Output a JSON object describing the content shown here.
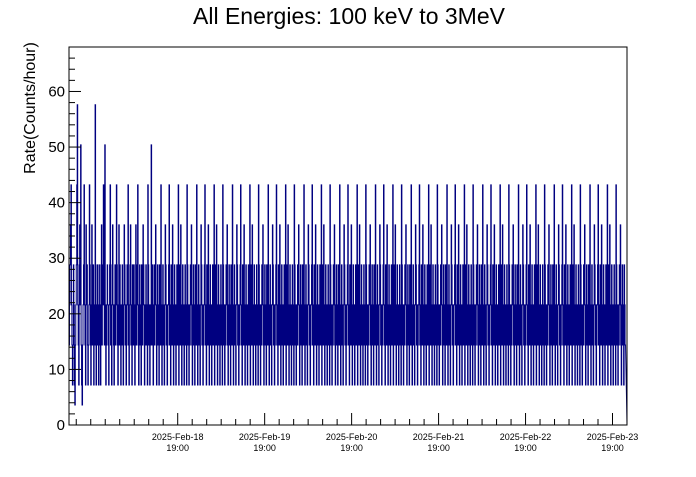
{
  "chart_data": {
    "type": "line",
    "title": "All Energies:  100 keV to 3MeV",
    "xlabel": "",
    "ylabel": "Rate(Counts/hour)",
    "x_range": [
      "2025-02-17 13:00",
      "2025-02-23 23:00"
    ],
    "ylim": [
      0,
      68
    ],
    "y_ticks": [
      0,
      10,
      20,
      30,
      40,
      50,
      60
    ],
    "x_ticks": [
      {
        "date": "2025-Feb-18",
        "time": "19:00"
      },
      {
        "date": "2025-Feb-19",
        "time": "19:00"
      },
      {
        "date": "2025-Feb-20",
        "time": "19:00"
      },
      {
        "date": "2025-Feb-21",
        "time": "19:00"
      },
      {
        "date": "2025-Feb-22",
        "time": "19:00"
      },
      {
        "date": "2025-Feb-23",
        "time": "19:00"
      }
    ],
    "grid": false,
    "legend": "none",
    "series": [
      {
        "color": "#000080",
        "bin_minutes": 8,
        "values": [
          14.4,
          21.6,
          28.8,
          36,
          43.2,
          21.6,
          14.4,
          7.2,
          14.4,
          28.8,
          21.6,
          7.2,
          3.6,
          14.4,
          21.6,
          28.8,
          43.2,
          57.6,
          21.6,
          14.4,
          7.2,
          28.8,
          36,
          21.6,
          50.4,
          14.4,
          7.2,
          3.6,
          14.4,
          21.6,
          28.8,
          43.2,
          21.6,
          14.4,
          7.2,
          36,
          21.6,
          28.8,
          14.4,
          7.2,
          14.4,
          21.6,
          43.2,
          28.8,
          14.4,
          7.2,
          21.6,
          36,
          14.4,
          21.6,
          28.8,
          7.2,
          14.4,
          21.6,
          57.6,
          14.4,
          7.2,
          21.6,
          28.8,
          14.4,
          21.6,
          7.2,
          28.8,
          21.6,
          14.4,
          7.2,
          28.8,
          36,
          14.4,
          21.6,
          28.8,
          43.2,
          21.6,
          14.4,
          50.4,
          21.6,
          7.2,
          14.4,
          21.6,
          28.8,
          21.6,
          14.4,
          7.2,
          21.6,
          28.8,
          43.2,
          14.4,
          21.6,
          7.2,
          28.8,
          36,
          21.6,
          14.4,
          7.2,
          21.6,
          28.8,
          14.4,
          21.6,
          43.2,
          28.8,
          14.4,
          7.2,
          21.6,
          36,
          14.4,
          28.8,
          21.6,
          7.2,
          14.4,
          21.6,
          28.8,
          14.4,
          7.2,
          21.6,
          36,
          28.8,
          14.4,
          21.6,
          7.2,
          14.4,
          28.8,
          21.6,
          43.2,
          14.4,
          7.2,
          21.6,
          28.8,
          36,
          14.4,
          21.6,
          7.2,
          28.8,
          14.4,
          21.6,
          28.8,
          14.4,
          7.2,
          21.6,
          36,
          14.4,
          21.6,
          28.8,
          43.2,
          14.4,
          7.2,
          21.6,
          28.8,
          14.4,
          21.6,
          7.2,
          28.8,
          21.6,
          14.4,
          36,
          28.8,
          21.6,
          7.2,
          14.4,
          21.6,
          28.8,
          14.4,
          21.6,
          7.2,
          43.2,
          28.8,
          14.4,
          21.6,
          7.2,
          21.6,
          14.4,
          50.4,
          21.6,
          14.4,
          28.8,
          7.2,
          21.6,
          14.4,
          28.8,
          21.6,
          36,
          14.4,
          7.2,
          21.6,
          28.8,
          14.4,
          21.6,
          7.2,
          28.8,
          21.6,
          14.4,
          43.2,
          21.6,
          7.2,
          14.4,
          28.8,
          21.6,
          14.4,
          7.2,
          21.6,
          36,
          28.8,
          14.4,
          21.6,
          7.2,
          14.4,
          21.6,
          28.8,
          43.2,
          14.4,
          21.6,
          7.2,
          28.8,
          21.6,
          14.4,
          36,
          21.6,
          7.2,
          14.4,
          28.8,
          21.6,
          14.4,
          7.2,
          21.6,
          28.8,
          14.4,
          21.6,
          43.2,
          7.2,
          28.8,
          21.6,
          14.4,
          36,
          21.6,
          7.2,
          14.4,
          28.8,
          21.6,
          14.4,
          7.2,
          21.6,
          28.8,
          14.4,
          21.6,
          7.2,
          43.2,
          28.8,
          14.4,
          21.6,
          7.2,
          21.6,
          14.4,
          28.8,
          21.6,
          36,
          14.4,
          7.2,
          21.6,
          28.8,
          14.4,
          21.6,
          7.2,
          28.8,
          21.6,
          14.4,
          43.2,
          21.6,
          7.2,
          14.4,
          28.8,
          21.6,
          14.4,
          7.2,
          21.6,
          36,
          28.8,
          14.4,
          21.6,
          7.2,
          14.4,
          21.6,
          28.8,
          43.2,
          14.4,
          21.6,
          7.2,
          28.8,
          21.6,
          14.4,
          36,
          21.6,
          7.2,
          14.4,
          28.8,
          21.6,
          14.4,
          7.2,
          21.6,
          28.8,
          14.4,
          21.6,
          43.2,
          7.2,
          28.8,
          21.6,
          14.4,
          36,
          21.6,
          7.2,
          14.4,
          28.8,
          21.6,
          14.4,
          7.2,
          21.6,
          28.8,
          14.4,
          21.6,
          7.2,
          43.2,
          28.8,
          14.4,
          21.6,
          7.2,
          21.6,
          14.4,
          28.8,
          21.6,
          36,
          14.4,
          7.2,
          21.6,
          28.8,
          14.4,
          21.6,
          7.2,
          28.8,
          21.6,
          14.4,
          43.2,
          21.6,
          7.2,
          14.4,
          28.8,
          21.6,
          14.4,
          7.2,
          21.6,
          36,
          28.8,
          14.4,
          21.6,
          7.2,
          14.4,
          21.6,
          28.8,
          43.2,
          14.4,
          21.6,
          7.2,
          28.8,
          21.6,
          14.4,
          36,
          21.6,
          7.2,
          14.4,
          28.8,
          21.6,
          14.4,
          7.2,
          21.6,
          28.8,
          14.4,
          21.6,
          43.2,
          7.2,
          28.8,
          21.6,
          14.4,
          36,
          21.6,
          7.2,
          14.4,
          28.8,
          21.6,
          14.4,
          7.2,
          21.6,
          28.8,
          14.4,
          21.6,
          7.2,
          43.2,
          28.8,
          14.4,
          21.6,
          7.2,
          21.6,
          14.4,
          28.8,
          21.6,
          36,
          14.4,
          7.2,
          21.6,
          28.8,
          14.4,
          21.6,
          7.2,
          28.8,
          21.6,
          14.4,
          43.2,
          21.6,
          7.2,
          14.4,
          28.8,
          21.6,
          14.4,
          7.2,
          21.6,
          36,
          28.8,
          14.4,
          21.6,
          7.2,
          14.4,
          21.6,
          28.8,
          43.2,
          14.4,
          21.6,
          7.2,
          28.8,
          21.6,
          14.4,
          36,
          21.6,
          7.2,
          14.4,
          28.8,
          21.6,
          14.4,
          7.2,
          21.6,
          28.8,
          14.4,
          21.6,
          43.2,
          7.2,
          28.8,
          21.6,
          14.4,
          36,
          21.6,
          7.2,
          14.4,
          28.8,
          21.6,
          14.4,
          7.2,
          21.6,
          28.8,
          14.4,
          21.6,
          7.2,
          43.2,
          28.8,
          14.4,
          21.6,
          7.2,
          21.6,
          14.4,
          28.8,
          21.6,
          36,
          14.4,
          7.2,
          21.6,
          28.8,
          14.4,
          21.6,
          7.2,
          28.8,
          21.6,
          14.4,
          43.2,
          21.6,
          7.2,
          14.4,
          28.8,
          21.6,
          14.4,
          7.2,
          21.6,
          36,
          28.8,
          14.4,
          21.6,
          7.2,
          14.4,
          21.6,
          28.8,
          43.2,
          14.4,
          21.6,
          7.2,
          28.8,
          21.6,
          14.4,
          36,
          21.6,
          7.2,
          14.4,
          28.8,
          21.6,
          14.4,
          7.2,
          21.6,
          28.8,
          14.4,
          21.6,
          43.2,
          7.2,
          28.8,
          21.6,
          14.4,
          36,
          21.6,
          7.2,
          14.4,
          28.8,
          21.6,
          14.4,
          7.2,
          21.6,
          28.8,
          14.4,
          21.6,
          7.2,
          43.2,
          28.8,
          14.4,
          21.6,
          7.2,
          21.6,
          14.4,
          28.8,
          21.6,
          36,
          14.4,
          7.2,
          21.6,
          28.8,
          14.4,
          21.6,
          7.2,
          28.8,
          21.6,
          14.4,
          43.2,
          21.6,
          7.2,
          14.4,
          28.8,
          21.6,
          14.4,
          7.2,
          21.6,
          36,
          28.8,
          14.4,
          21.6,
          7.2,
          14.4,
          21.6,
          28.8,
          43.2,
          14.4,
          21.6,
          7.2,
          28.8,
          21.6,
          14.4,
          36,
          21.6,
          7.2,
          14.4,
          28.8,
          21.6,
          14.4,
          7.2,
          21.6,
          28.8,
          14.4,
          21.6,
          43.2,
          7.2,
          28.8,
          21.6,
          14.4,
          36,
          21.6,
          7.2,
          14.4,
          28.8,
          21.6,
          14.4,
          7.2,
          21.6,
          28.8,
          14.4,
          21.6,
          7.2,
          43.2,
          28.8,
          14.4,
          21.6,
          7.2,
          21.6,
          14.4,
          28.8,
          21.6,
          36,
          14.4,
          7.2,
          21.6,
          28.8,
          14.4,
          21.6,
          7.2,
          28.8,
          21.6,
          14.4,
          43.2,
          21.6,
          7.2,
          14.4,
          28.8,
          21.6,
          14.4,
          7.2,
          21.6,
          36,
          28.8,
          14.4,
          21.6,
          7.2,
          14.4,
          21.6,
          28.8,
          43.2,
          14.4,
          21.6,
          7.2,
          28.8,
          21.6,
          14.4,
          36,
          21.6,
          7.2,
          14.4,
          28.8,
          21.6,
          14.4,
          7.2,
          21.6,
          28.8,
          14.4,
          21.6,
          43.2,
          7.2,
          28.8,
          21.6,
          14.4,
          36,
          21.6,
          7.2,
          14.4,
          28.8,
          21.6,
          14.4,
          7.2,
          21.6,
          28.8,
          14.4,
          21.6,
          7.2,
          43.2,
          28.8,
          14.4,
          21.6,
          7.2,
          21.6,
          14.4,
          28.8,
          21.6,
          36,
          14.4,
          7.2,
          21.6,
          28.8,
          14.4,
          21.6,
          7.2,
          28.8,
          21.6,
          14.4,
          43.2,
          21.6,
          7.2,
          14.4,
          28.8,
          21.6,
          14.4,
          7.2,
          21.6,
          36,
          28.8,
          14.4,
          21.6,
          7.2,
          14.4,
          21.6,
          28.8,
          43.2,
          14.4,
          21.6,
          7.2,
          28.8,
          21.6,
          14.4,
          36,
          21.6,
          7.2,
          14.4,
          28.8,
          21.6,
          14.4,
          7.2,
          21.6,
          28.8,
          14.4,
          21.6,
          43.2,
          7.2,
          28.8,
          21.6,
          14.4,
          36,
          21.6,
          7.2,
          14.4,
          28.8,
          21.6,
          14.4,
          7.2,
          21.6,
          28.8,
          14.4,
          21.6,
          7.2,
          43.2,
          28.8,
          14.4,
          21.6,
          7.2,
          21.6,
          14.4,
          28.8,
          21.6,
          36,
          14.4,
          7.2,
          21.6,
          28.8,
          14.4,
          21.6,
          7.2,
          28.8,
          21.6,
          14.4,
          43.2,
          21.6,
          7.2,
          14.4,
          28.8,
          21.6,
          14.4,
          7.2,
          21.6,
          36,
          28.8,
          14.4,
          21.6,
          7.2,
          14.4,
          21.6,
          28.8,
          43.2,
          14.4,
          21.6,
          7.2,
          28.8,
          21.6,
          14.4,
          36,
          21.6,
          7.2,
          14.4,
          28.8,
          21.6,
          14.4,
          7.2,
          21.6,
          28.8,
          14.4,
          21.6,
          43.2,
          7.2,
          28.8,
          21.6,
          14.4,
          36,
          21.6,
          7.2,
          14.4,
          28.8,
          21.6,
          14.4,
          7.2,
          21.6,
          28.8,
          14.4,
          21.6,
          7.2,
          43.2,
          28.8,
          14.4,
          21.6,
          7.2,
          21.6,
          14.4,
          28.8,
          21.6,
          36,
          14.4,
          7.2,
          21.6,
          28.8,
          14.4,
          21.6,
          7.2,
          28.8,
          21.6,
          14.4,
          43.2,
          21.6,
          7.2,
          14.4,
          28.8,
          21.6,
          14.4,
          7.2,
          21.6,
          36,
          28.8,
          14.4,
          21.6,
          7.2,
          14.4,
          21.6,
          28.8,
          43.2,
          14.4,
          21.6,
          7.2,
          28.8,
          21.6,
          14.4,
          36,
          21.6,
          7.2,
          14.4,
          28.8,
          21.6,
          14.4,
          7.2,
          21.6,
          28.8,
          14.4,
          21.6,
          43.2,
          7.2,
          28.8,
          21.6,
          14.4,
          36,
          21.6,
          7.2,
          14.4,
          28.8,
          21.6,
          14.4,
          7.2,
          21.6,
          28.8,
          14.4,
          21.6,
          7.2,
          43.2,
          28.8,
          14.4,
          21.6,
          7.2,
          21.6,
          14.4,
          28.8,
          21.6,
          36,
          14.4,
          7.2,
          21.6,
          28.8,
          14.4,
          21.6,
          7.2,
          28.8,
          21.6,
          14.4,
          43.2,
          21.6,
          7.2,
          14.4,
          28.8,
          21.6,
          14.4,
          7.2,
          21.6,
          36,
          28.8,
          14.4,
          21.6,
          7.2,
          14.4,
          21.6,
          28.8,
          43.2,
          14.4,
          21.6,
          7.2,
          28.8,
          21.6,
          14.4,
          36,
          21.6,
          7.2,
          14.4,
          28.8,
          21.6,
          14.4,
          7.2,
          21.6,
          28.8,
          14.4,
          21.6,
          43.2,
          7.2,
          28.8,
          21.6,
          14.4,
          36,
          21.6,
          7.2,
          14.4,
          28.8,
          21.6,
          14.4,
          7.2,
          21.6,
          28.8,
          14.4,
          21.6,
          7.2,
          43.2,
          28.8,
          14.4,
          21.6,
          7.2,
          21.6,
          14.4,
          28.8,
          21.6,
          36,
          14.4,
          7.2,
          21.6,
          28.8,
          14.4,
          21.6,
          7.2,
          28.8,
          21.6,
          14.4,
          43.2,
          21.6,
          7.2,
          14.4,
          28.8,
          21.6,
          14.4,
          7.2,
          21.6,
          36,
          28.8,
          14.4,
          21.6,
          7.2,
          14.4,
          21.6,
          28.8,
          43.2,
          14.4,
          21.6,
          7.2,
          28.8,
          21.6,
          14.4,
          36,
          21.6,
          7.2,
          14.4,
          28.8,
          21.6,
          14.4,
          7.2,
          21.6,
          28.8,
          14.4,
          21.6,
          43.2,
          7.2,
          28.8,
          21.6,
          14.4,
          36,
          21.6,
          7.2,
          14.4,
          28.8,
          21.6,
          14.4,
          7.2,
          21.6,
          28.8,
          14.4,
          21.6,
          7.2,
          43.2,
          28.8,
          14.4,
          21.6,
          7.2,
          21.6,
          14.4,
          28.8,
          21.6,
          36,
          14.4,
          7.2,
          21.6,
          28.8,
          14.4,
          21.6,
          7.2,
          28.8,
          21.6,
          14.4,
          43.2,
          21.6,
          7.2,
          14.4,
          28.8,
          21.6,
          14.4,
          7.2,
          21.6,
          36,
          28.8,
          14.4,
          21.6,
          7.2,
          14.4,
          21.6,
          28.8,
          43.2,
          14.4,
          21.6,
          7.2,
          28.8,
          21.6,
          14.4,
          36,
          21.6,
          7.2,
          14.4,
          28.8,
          21.6,
          14.4,
          7.2,
          21.6,
          28.8,
          14.4,
          21.6,
          43.2,
          7.2,
          28.8,
          21.6,
          14.4,
          36,
          21.6,
          7.2,
          14.4,
          28.8,
          21.6,
          14.4,
          7.2,
          21.6,
          28.8,
          14.4,
          21.6,
          7.2,
          43.2,
          28.8,
          14.4,
          21.6,
          7.2,
          21.6,
          14.4,
          28.8,
          21.6,
          36,
          14.4,
          7.2,
          21.6,
          28.8,
          14.4,
          21.6,
          7.2,
          28.8,
          21.6,
          14.4
        ]
      }
    ]
  }
}
